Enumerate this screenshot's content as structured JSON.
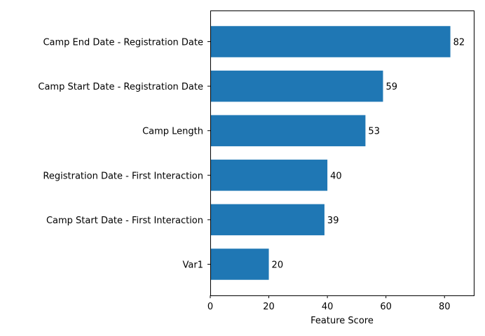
{
  "chart_data": {
    "type": "bar",
    "orientation": "horizontal",
    "categories": [
      "Camp End Date - Registration Date",
      "Camp Start Date - Registration Date",
      "Camp Length",
      "Registration Date - First Interaction",
      "Camp Start Date - First Interaction",
      "Var1"
    ],
    "values": [
      82,
      59,
      53,
      40,
      39,
      20
    ],
    "data_labels": [
      "82",
      "59",
      "53",
      "40",
      "39",
      "20"
    ],
    "xlabel": "Feature Score",
    "ylabel": "",
    "title": "",
    "xlim": [
      0,
      90
    ],
    "xticks": [
      0,
      20,
      40,
      60,
      80
    ],
    "xtick_labels": [
      "0",
      "20",
      "40",
      "60",
      "80"
    ],
    "bar_color": "#1f77b4",
    "grid": false,
    "legend": "none"
  }
}
